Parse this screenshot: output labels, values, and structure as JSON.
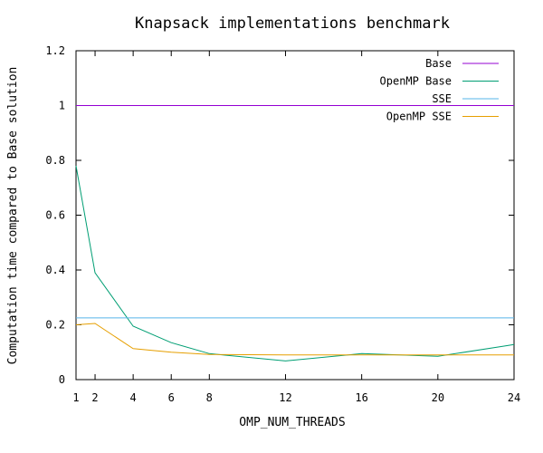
{
  "chart_data": {
    "type": "line",
    "title": "Knapsack implementations benchmark",
    "xlabel": "OMP_NUM_THREADS",
    "ylabel": "Computation time compared to Base solution",
    "xlim": [
      1,
      24
    ],
    "ylim": [
      0,
      1.2
    ],
    "x_ticks": [
      1,
      2,
      4,
      6,
      8,
      12,
      16,
      20,
      24
    ],
    "y_ticks": [
      0,
      0.2,
      0.4,
      0.6,
      0.8,
      1,
      1.2
    ],
    "y_tick_labels": [
      "0",
      "0.2",
      "0.4",
      "0.6",
      "0.8",
      "1",
      "1.2"
    ],
    "grid": false,
    "legend_position": "top-right",
    "series": [
      {
        "name": "Base",
        "color": "#9400d3",
        "x": [
          1,
          24
        ],
        "y": [
          1.0,
          1.0
        ]
      },
      {
        "name": "OpenMP Base",
        "color": "#009e73",
        "x": [
          1,
          2,
          4,
          6,
          8,
          12,
          16,
          20,
          24
        ],
        "y": [
          0.78,
          0.39,
          0.195,
          0.135,
          0.095,
          0.068,
          0.095,
          0.085,
          0.128
        ]
      },
      {
        "name": "SSE",
        "color": "#56b4e9",
        "x": [
          1,
          24
        ],
        "y": [
          0.225,
          0.225
        ]
      },
      {
        "name": "OpenMP SSE",
        "color": "#e69f00",
        "x": [
          1,
          2,
          4,
          6,
          8,
          12,
          16,
          20,
          24
        ],
        "y": [
          0.2,
          0.205,
          0.113,
          0.1,
          0.092,
          0.09,
          0.09,
          0.09,
          0.09
        ]
      }
    ]
  }
}
